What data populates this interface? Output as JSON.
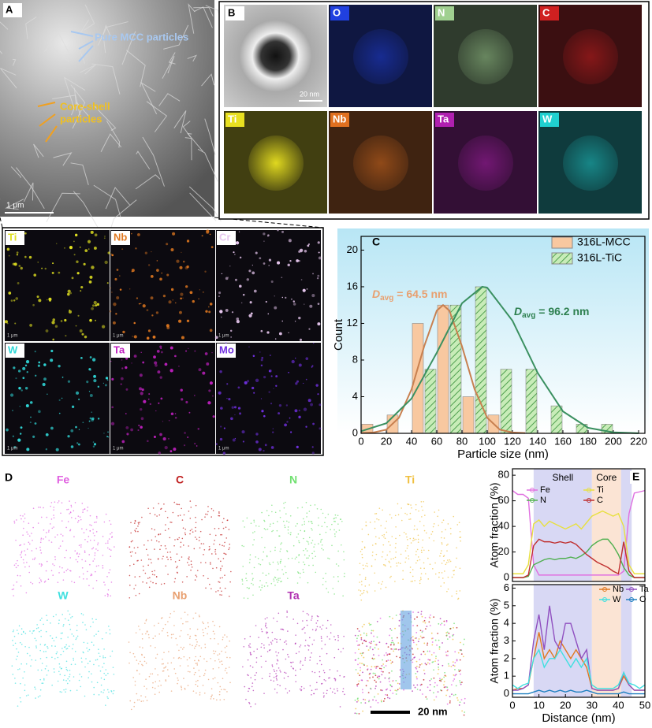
{
  "panels": {
    "A": {
      "label": "A",
      "annotations": [
        "Pure MCC particles",
        "Core-shell",
        "particles"
      ],
      "scale": "1 μm"
    },
    "A_maps": {
      "elements": [
        {
          "label": "Ti",
          "color": "#e0e020"
        },
        {
          "label": "Nb",
          "color": "#e07820"
        },
        {
          "label": "Cr",
          "color": "#e8c8f0"
        },
        {
          "label": "W",
          "color": "#30d8d8"
        },
        {
          "label": "Ta",
          "color": "#c020c0"
        },
        {
          "label": "Mo",
          "color": "#7030e0"
        }
      ],
      "scale": "1 μm"
    },
    "B": {
      "label": "B",
      "scale": "20 nm",
      "elements": [
        {
          "label": "O",
          "color": "#2040e0"
        },
        {
          "label": "N",
          "color": "#a0d090"
        },
        {
          "label": "C",
          "color": "#d02020"
        },
        {
          "label": "Ti",
          "color": "#e8e020"
        },
        {
          "label": "Nb",
          "color": "#e07020"
        },
        {
          "label": "Ta",
          "color": "#b020b0"
        },
        {
          "label": "W",
          "color": "#20d0d0"
        }
      ]
    },
    "D": {
      "label": "D",
      "scale": "20 nm",
      "elements": [
        {
          "label": "Fe",
          "color": "#e060e0"
        },
        {
          "label": "C",
          "color": "#c02020"
        },
        {
          "label": "N",
          "color": "#70e070"
        },
        {
          "label": "Ti",
          "color": "#f0c040"
        },
        {
          "label": "W",
          "color": "#40e0e0"
        },
        {
          "label": "Nb",
          "color": "#e8a070"
        },
        {
          "label": "Ta",
          "color": "#b030b0"
        }
      ]
    }
  },
  "chart_data": [
    {
      "type": "histogram",
      "panel_label": "C",
      "xlabel": "Particle size (nm)",
      "ylabel": "Count",
      "bins": [
        0,
        10,
        20,
        30,
        40,
        50,
        60,
        70,
        80,
        90,
        100,
        110,
        120,
        130,
        140,
        150,
        160,
        170,
        180,
        190,
        200
      ],
      "series": [
        {
          "name": "316L-MCC",
          "color": "#f8c8a0",
          "hatch": false,
          "values": [
            1,
            0,
            2,
            0,
            12,
            0,
            14,
            0,
            4,
            0,
            2,
            0,
            0,
            0,
            0,
            0,
            0,
            0,
            0,
            0
          ]
        },
        {
          "name": "316L-TiC",
          "color": "#90d080",
          "hatch": true,
          "values": [
            0,
            0,
            0,
            0,
            0,
            7,
            0,
            14,
            0,
            16,
            0,
            7,
            0,
            7,
            0,
            3,
            0,
            1,
            0,
            1
          ]
        }
      ],
      "fits": [
        {
          "color": "#c88050",
          "x": [
            0,
            10,
            20,
            30,
            40,
            50,
            60,
            65,
            70,
            80,
            90,
            100,
            110,
            120,
            130
          ],
          "values": [
            0.03,
            0.1,
            0.4,
            1.7,
            4.8,
            9.5,
            13.4,
            14,
            13.4,
            9.5,
            4.8,
            1.7,
            0.4,
            0.1,
            0.03
          ]
        },
        {
          "color": "#3a9060",
          "x": [
            0,
            20,
            40,
            60,
            80,
            96,
            100,
            120,
            140,
            160,
            180,
            200,
            220
          ],
          "values": [
            0.23,
            1.1,
            3.8,
            8.8,
            14.2,
            16,
            15.9,
            12.3,
            6.6,
            2.4,
            0.6,
            0.11,
            0.01
          ]
        }
      ],
      "annotations": [
        {
          "symbol": "D",
          "subscript": "avg",
          "text": " = 64.5 nm",
          "color": "#e8a070"
        },
        {
          "symbol": "D",
          "subscript": "avg",
          "text": " = 96.2 nm",
          "color": "#2e8050"
        }
      ],
      "xlim": [
        0,
        225
      ],
      "ylim": [
        0,
        21.5
      ],
      "xticks": [
        0,
        20,
        40,
        60,
        80,
        100,
        120,
        140,
        160,
        180,
        200,
        220
      ],
      "yticks": [
        0,
        4,
        8,
        12,
        16,
        20
      ],
      "legend": "upper right"
    },
    {
      "type": "line",
      "panel_label": "E",
      "ylabel": "Atom fraction (%)",
      "x": [
        0,
        2,
        4,
        6,
        8,
        10,
        12,
        14,
        16,
        18,
        20,
        22,
        24,
        26,
        28,
        30,
        32,
        34,
        36,
        38,
        40,
        42,
        44,
        46,
        48,
        50
      ],
      "regions": [
        {
          "label": "Shell",
          "x": [
            8,
            30
          ],
          "color": "#d8d8f4"
        },
        {
          "label": "Core",
          "x": [
            30,
            41
          ],
          "color": "#fbe4d4"
        },
        {
          "x": [
            41,
            45
          ],
          "color": "#d8d8f4"
        }
      ],
      "series": [
        {
          "name": "Fe",
          "color": "#e070e0",
          "values": [
            68,
            65,
            65,
            62,
            10,
            2,
            2,
            2,
            2,
            2,
            2,
            2,
            2,
            2,
            2,
            2,
            2,
            2,
            2,
            2,
            2,
            5,
            50,
            66,
            67,
            68
          ]
        },
        {
          "name": "Ti",
          "color": "#e8e040",
          "values": [
            3,
            3,
            3,
            10,
            42,
            45,
            40,
            44,
            42,
            40,
            38,
            40,
            42,
            38,
            43,
            48,
            50,
            52,
            50,
            48,
            50,
            40,
            10,
            3,
            3,
            3
          ]
        },
        {
          "name": "N",
          "color": "#50b050",
          "values": [
            0,
            0,
            0,
            1,
            10,
            12,
            14,
            15,
            14,
            15,
            15,
            16,
            15,
            17,
            20,
            25,
            28,
            30,
            30,
            25,
            18,
            8,
            2,
            0,
            0,
            0
          ]
        },
        {
          "name": "C",
          "color": "#c03030",
          "values": [
            0,
            0,
            0,
            2,
            25,
            30,
            28,
            28,
            27,
            28,
            27,
            28,
            26,
            22,
            18,
            15,
            12,
            10,
            8,
            5,
            3,
            28,
            5,
            0,
            0,
            0
          ]
        }
      ],
      "xlim": [
        0,
        50
      ],
      "ylim": [
        -3,
        85
      ],
      "yticks": [
        0,
        20,
        40,
        60,
        80
      ]
    },
    {
      "type": "line",
      "ylabel": "Atom fraction (%)",
      "xlabel": "Distance (nm)",
      "x": [
        0,
        2,
        4,
        6,
        8,
        10,
        12,
        14,
        16,
        18,
        20,
        22,
        24,
        26,
        28,
        30,
        32,
        34,
        36,
        38,
        40,
        42,
        44,
        46,
        48,
        50
      ],
      "regions": [
        {
          "x": [
            8,
            30
          ],
          "color": "#d8d8f4"
        },
        {
          "x": [
            30,
            41
          ],
          "color": "#fbe4d4"
        },
        {
          "x": [
            41,
            45
          ],
          "color": "#d8d8f4"
        }
      ],
      "series": [
        {
          "name": "Nb",
          "color": "#e07820",
          "values": [
            0.2,
            0.3,
            0.3,
            0.5,
            2,
            3.5,
            2,
            2.5,
            2,
            3,
            2.5,
            2,
            2.5,
            2,
            1.5,
            0.3,
            0.2,
            0.2,
            0.2,
            0.2,
            0.3,
            1,
            0.5,
            0.2,
            0.2,
            0.2
          ]
        },
        {
          "name": "Ta",
          "color": "#9050c0",
          "values": [
            0.2,
            0.2,
            0.3,
            0.5,
            3,
            4.5,
            2.5,
            5,
            3,
            2.5,
            4,
            4,
            3,
            2,
            2.5,
            0.3,
            0.2,
            0.2,
            0.2,
            0.2,
            0.3,
            1.2,
            0.5,
            0.2,
            0.2,
            0.2
          ]
        },
        {
          "name": "W",
          "color": "#40e0e0",
          "values": [
            0.5,
            0.3,
            0.5,
            0.6,
            2,
            2.5,
            1.5,
            2,
            2,
            2.5,
            2,
            1.5,
            2,
            1.5,
            2,
            0.5,
            0.3,
            0.3,
            0.3,
            0.3,
            0.5,
            1.2,
            0.6,
            0.5,
            0.3,
            0.5
          ]
        },
        {
          "name": "O",
          "color": "#2080c0",
          "values": [
            0,
            0,
            0,
            0,
            0.1,
            0.2,
            0.1,
            0.2,
            0.1,
            0.2,
            0.1,
            0.2,
            0.1,
            0.1,
            0.2,
            0.1,
            0,
            0,
            0,
            0,
            0,
            0.1,
            0,
            0,
            0,
            0
          ]
        }
      ],
      "xlim": [
        0,
        50
      ],
      "ylim": [
        -0.2,
        6.2
      ],
      "xticks": [
        0,
        10,
        20,
        30,
        40,
        50
      ],
      "yticks": [
        0,
        1,
        2,
        3,
        4,
        5,
        6
      ]
    }
  ]
}
